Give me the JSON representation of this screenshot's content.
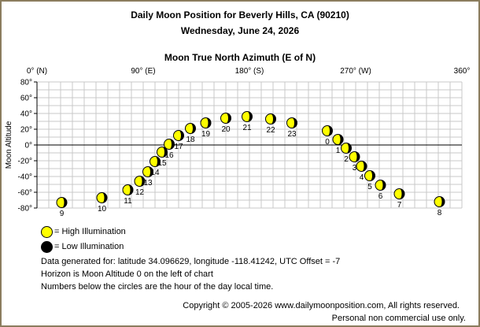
{
  "title": "Daily Moon Position for Beverly Hills, CA (90210)",
  "subtitle": "Wednesday, June 24, 2026",
  "chart_data": {
    "type": "scatter",
    "title": "Moon True North Azimuth (E of N)",
    "ylabel": "Moon Altitude",
    "xlim": [
      0,
      360
    ],
    "ylim": [
      -80,
      80
    ],
    "x_ticks": [
      "0° (N)",
      "90° (E)",
      "180° (S)",
      "270° (W)",
      "360°"
    ],
    "x_tick_values": [
      0,
      90,
      180,
      270,
      360
    ],
    "y_ticks": [
      "80°",
      "60°",
      "40°",
      "20°",
      "0°",
      "-20°",
      "-40°",
      "-60°",
      "-80°"
    ],
    "y_tick_values": [
      80,
      60,
      40,
      20,
      0,
      -20,
      -40,
      -60,
      -80
    ],
    "grid": true,
    "horizon_line": 0,
    "points": [
      {
        "hour": "0",
        "az": 246,
        "alt": 18
      },
      {
        "hour": "1",
        "az": 255,
        "alt": 7
      },
      {
        "hour": "2",
        "az": 262,
        "alt": -4
      },
      {
        "hour": "3",
        "az": 269,
        "alt": -15
      },
      {
        "hour": "4",
        "az": 275,
        "alt": -27
      },
      {
        "hour": "5",
        "az": 282,
        "alt": -39
      },
      {
        "hour": "6",
        "az": 291,
        "alt": -51
      },
      {
        "hour": "7",
        "az": 307,
        "alt": -62
      },
      {
        "hour": "8",
        "az": 341,
        "alt": -72
      },
      {
        "hour": "9",
        "az": 21,
        "alt": -73
      },
      {
        "hour": "10",
        "az": 55,
        "alt": -67
      },
      {
        "hour": "11",
        "az": 77,
        "alt": -57
      },
      {
        "hour": "12",
        "az": 87,
        "alt": -46
      },
      {
        "hour": "13",
        "az": 94,
        "alt": -34
      },
      {
        "hour": "14",
        "az": 100,
        "alt": -21
      },
      {
        "hour": "15",
        "az": 106,
        "alt": -9
      },
      {
        "hour": "16",
        "az": 112,
        "alt": 1
      },
      {
        "hour": "17",
        "az": 120,
        "alt": 12
      },
      {
        "hour": "18",
        "az": 130,
        "alt": 21
      },
      {
        "hour": "19",
        "az": 143,
        "alt": 28
      },
      {
        "hour": "20",
        "az": 160,
        "alt": 34
      },
      {
        "hour": "21",
        "az": 178,
        "alt": 36
      },
      {
        "hour": "22",
        "az": 198,
        "alt": 33
      },
      {
        "hour": "23",
        "az": 216,
        "alt": 28
      }
    ]
  },
  "legend": {
    "high_label": "= High Illumination",
    "low_label": "= Low Illumination",
    "high_color": "#ffff00",
    "low_color": "#000000"
  },
  "notes": {
    "line1": "Data generated for: latitude 34.096629, longitude -118.41242, UTC Offset = -7",
    "line2": "Horizon is Moon Altitude 0 on the left of chart",
    "line3": "Numbers below the circles are the hour of the day local time."
  },
  "footer": {
    "copyright": "Copyright © 2005-2026 www.dailymoonposition.com, All rights reserved.",
    "personal": "Personal non commercial use only."
  }
}
